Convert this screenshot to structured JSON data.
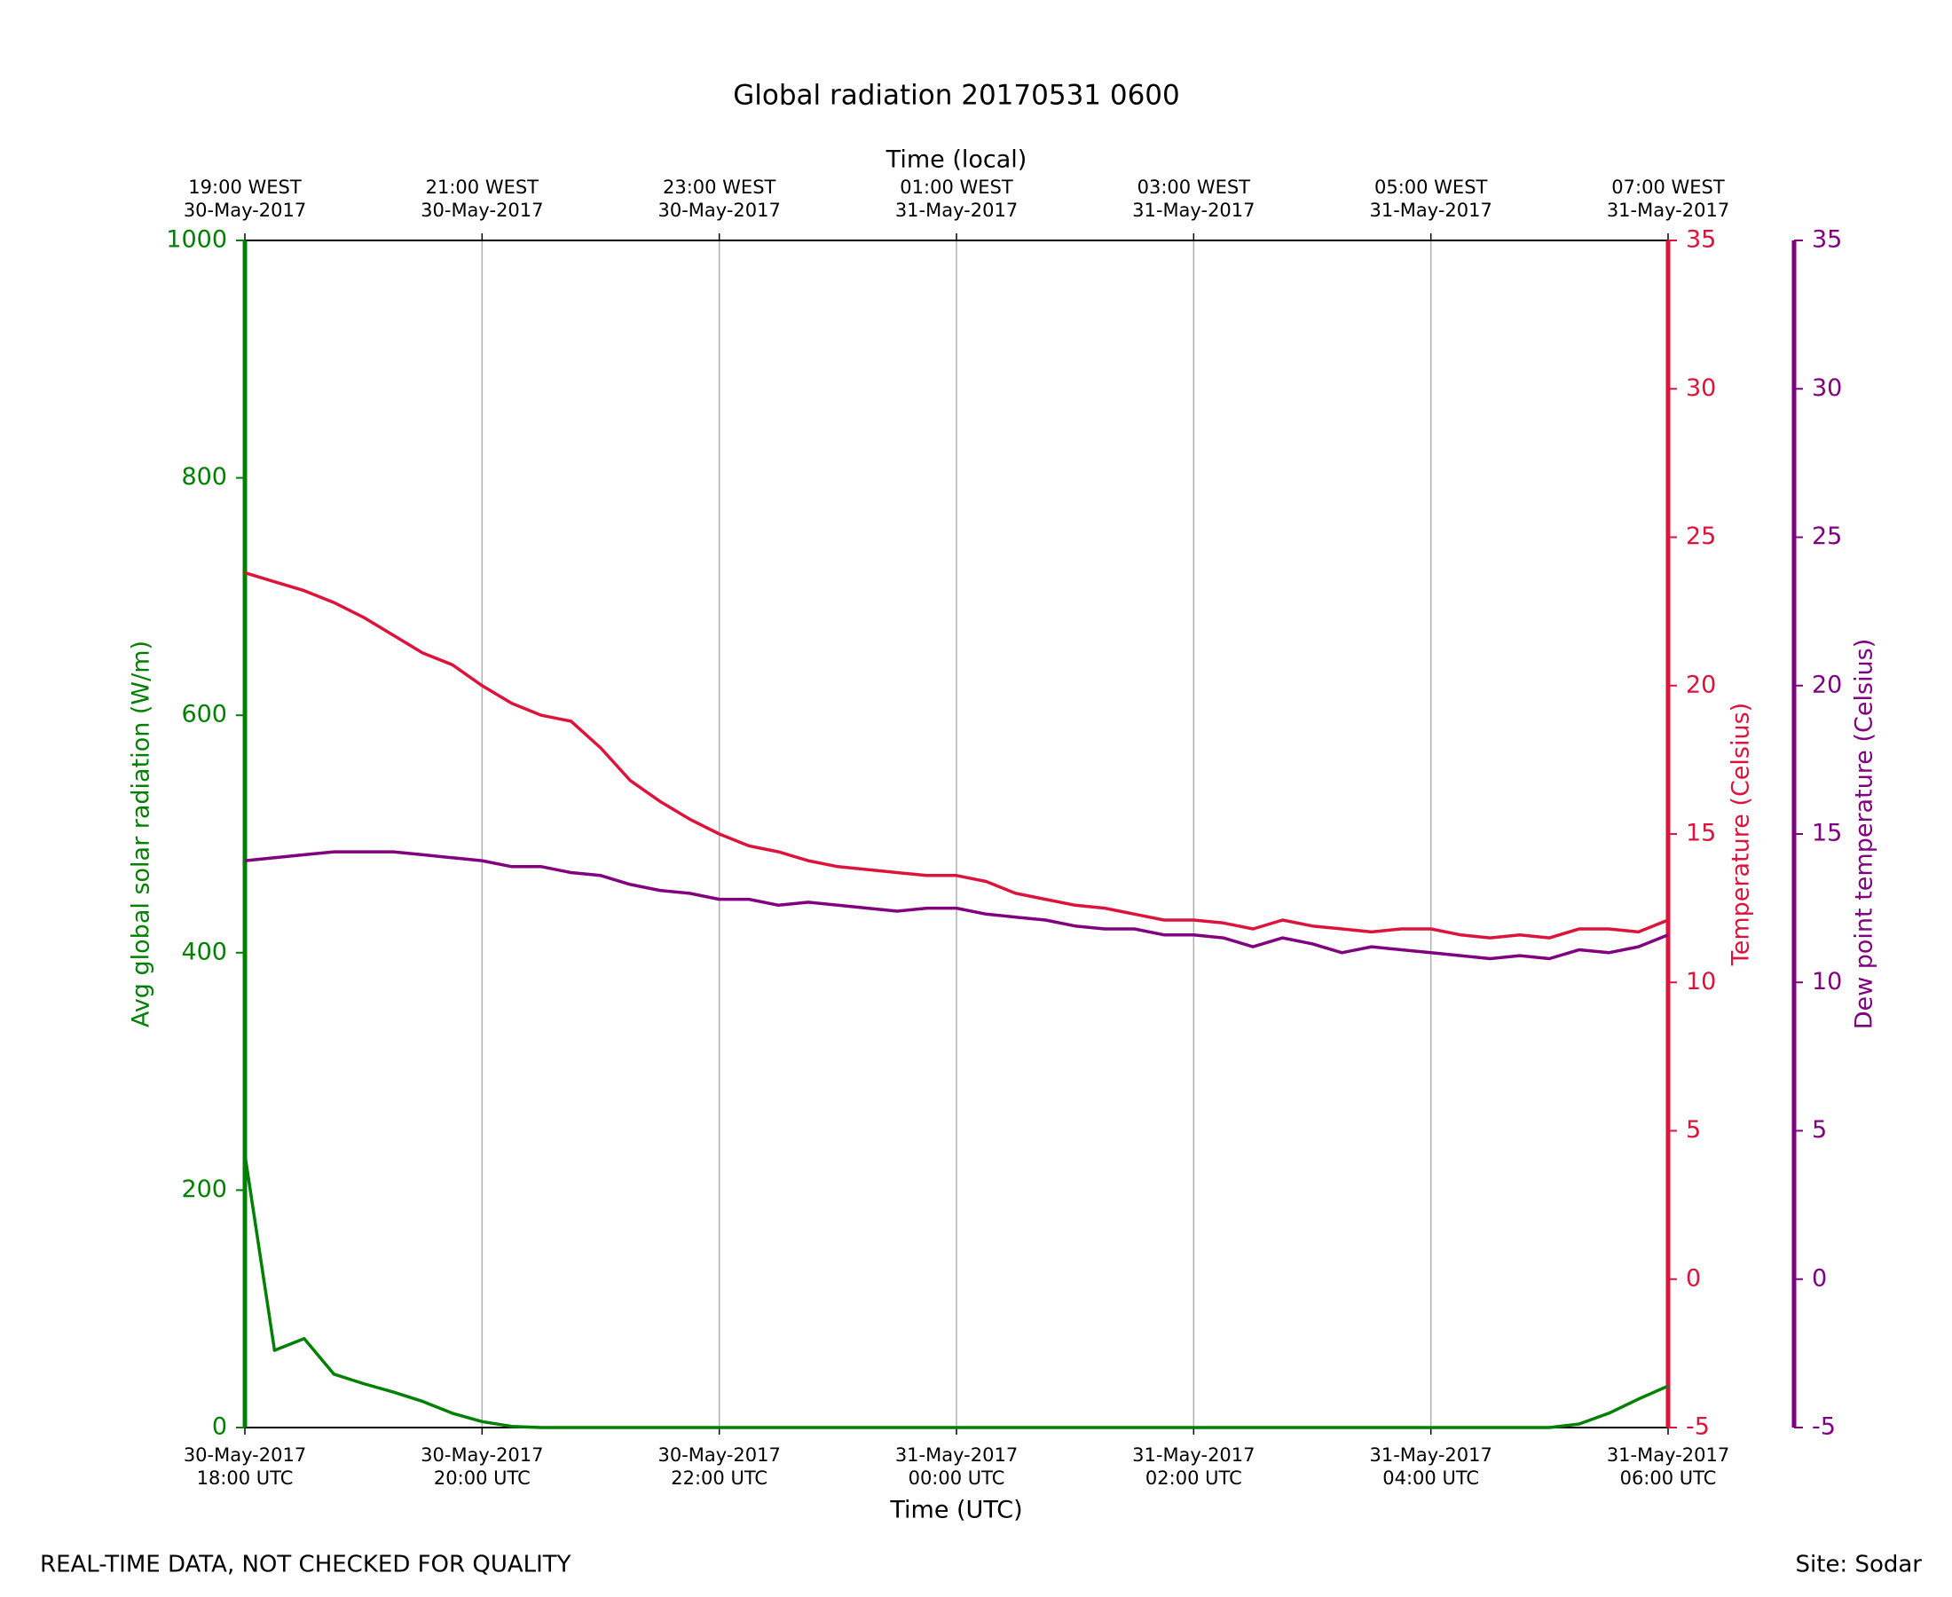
{
  "chart_data": {
    "type": "line",
    "title": "Global radiation 20170531 0600",
    "xlabel": "Time (UTC)",
    "x2label": "Time (local)",
    "ylabel": "Avg global solar radiation (W/m)",
    "y2label": "Temperature (Celsius)",
    "y3label": "Dew point temperature (Celsius)",
    "footer_left": "REAL-TIME DATA, NOT CHECKED FOR QUALITY",
    "footer_right": "Site: Sodar",
    "grid": true,
    "xlim": [
      "2017-05-30 18:00",
      "2017-05-31 06:00"
    ],
    "xticks": [
      {
        "value": "2017-05-30 18:00",
        "label": [
          "30-May-2017",
          "18:00 UTC"
        ]
      },
      {
        "value": "2017-05-30 20:00",
        "label": [
          "30-May-2017",
          "20:00 UTC"
        ]
      },
      {
        "value": "2017-05-30 22:00",
        "label": [
          "30-May-2017",
          "22:00 UTC"
        ]
      },
      {
        "value": "2017-05-31 00:00",
        "label": [
          "31-May-2017",
          "00:00 UTC"
        ]
      },
      {
        "value": "2017-05-31 02:00",
        "label": [
          "31-May-2017",
          "02:00 UTC"
        ]
      },
      {
        "value": "2017-05-31 04:00",
        "label": [
          "31-May-2017",
          "04:00 UTC"
        ]
      },
      {
        "value": "2017-05-31 06:00",
        "label": [
          "31-May-2017",
          "06:00 UTC"
        ]
      }
    ],
    "x2ticks": [
      {
        "value": "2017-05-30 18:00",
        "label": [
          "19:00 WEST",
          "30-May-2017"
        ]
      },
      {
        "value": "2017-05-30 20:00",
        "label": [
          "21:00 WEST",
          "30-May-2017"
        ]
      },
      {
        "value": "2017-05-30 22:00",
        "label": [
          "23:00 WEST",
          "30-May-2017"
        ]
      },
      {
        "value": "2017-05-31 00:00",
        "label": [
          "01:00 WEST",
          "31-May-2017"
        ]
      },
      {
        "value": "2017-05-31 02:00",
        "label": [
          "03:00 WEST",
          "31-May-2017"
        ]
      },
      {
        "value": "2017-05-31 04:00",
        "label": [
          "05:00 WEST",
          "31-May-2017"
        ]
      },
      {
        "value": "2017-05-31 06:00",
        "label": [
          "07:00 WEST",
          "31-May-2017"
        ]
      }
    ],
    "ylim": [
      0,
      1000
    ],
    "yticks": [
      0,
      200,
      400,
      600,
      800,
      1000
    ],
    "y2lim": [
      -5,
      35
    ],
    "y2ticks": [
      -5,
      0,
      5,
      10,
      15,
      20,
      25,
      30,
      35
    ],
    "y3lim": [
      -5,
      35
    ],
    "y3ticks": [
      -5,
      0,
      5,
      10,
      15,
      20,
      25,
      30,
      35
    ],
    "x": [
      "2017-05-30 18:00",
      "2017-05-30 18:15",
      "2017-05-30 18:30",
      "2017-05-30 18:45",
      "2017-05-30 19:00",
      "2017-05-30 19:15",
      "2017-05-30 19:30",
      "2017-05-30 19:45",
      "2017-05-30 20:00",
      "2017-05-30 20:15",
      "2017-05-30 20:30",
      "2017-05-30 20:45",
      "2017-05-30 21:00",
      "2017-05-30 21:15",
      "2017-05-30 21:30",
      "2017-05-30 21:45",
      "2017-05-30 22:00",
      "2017-05-30 22:15",
      "2017-05-30 22:30",
      "2017-05-30 22:45",
      "2017-05-30 23:00",
      "2017-05-30 23:15",
      "2017-05-30 23:30",
      "2017-05-30 23:45",
      "2017-05-31 00:00",
      "2017-05-31 00:15",
      "2017-05-31 00:30",
      "2017-05-31 00:45",
      "2017-05-31 01:00",
      "2017-05-31 01:15",
      "2017-05-31 01:30",
      "2017-05-31 01:45",
      "2017-05-31 02:00",
      "2017-05-31 02:15",
      "2017-05-31 02:30",
      "2017-05-31 02:45",
      "2017-05-31 03:00",
      "2017-05-31 03:15",
      "2017-05-31 03:30",
      "2017-05-31 03:45",
      "2017-05-31 04:00",
      "2017-05-31 04:15",
      "2017-05-31 04:30",
      "2017-05-31 04:45",
      "2017-05-31 05:00",
      "2017-05-31 05:15",
      "2017-05-31 05:30",
      "2017-05-31 05:45",
      "2017-05-31 06:00"
    ],
    "series": [
      {
        "name": "Avg global solar radiation",
        "color": "#008000",
        "axis": "y",
        "values": [
          230,
          65,
          75,
          45,
          37,
          30,
          22,
          12,
          5,
          1,
          0,
          0,
          0,
          0,
          0,
          0,
          0,
          0,
          0,
          0,
          0,
          0,
          0,
          0,
          0,
          0,
          0,
          0,
          0,
          0,
          0,
          0,
          0,
          0,
          0,
          0,
          0,
          0,
          0,
          0,
          0,
          0,
          0,
          0,
          0,
          3,
          12,
          24,
          35
        ]
      },
      {
        "name": "Temperature",
        "color": "#dc143c",
        "axis": "y2",
        "values": [
          23.8,
          23.5,
          23.2,
          22.8,
          22.3,
          21.7,
          21.1,
          20.7,
          20.0,
          19.4,
          19.0,
          18.8,
          17.9,
          16.8,
          16.1,
          15.5,
          15.0,
          14.6,
          14.4,
          14.1,
          13.9,
          13.8,
          13.7,
          13.6,
          13.6,
          13.4,
          13.0,
          12.8,
          12.6,
          12.5,
          12.3,
          12.1,
          12.1,
          12.0,
          11.8,
          12.1,
          11.9,
          11.8,
          11.7,
          11.8,
          11.8,
          11.6,
          11.5,
          11.6,
          11.5,
          11.8,
          11.8,
          11.7,
          12.1
        ]
      },
      {
        "name": "Dew point temperature",
        "color": "#800080",
        "axis": "y3",
        "values": [
          14.1,
          14.2,
          14.3,
          14.4,
          14.4,
          14.4,
          14.3,
          14.2,
          14.1,
          13.9,
          13.9,
          13.7,
          13.6,
          13.3,
          13.1,
          13.0,
          12.8,
          12.8,
          12.6,
          12.7,
          12.6,
          12.5,
          12.4,
          12.5,
          12.5,
          12.3,
          12.2,
          12.1,
          11.9,
          11.8,
          11.8,
          11.6,
          11.6,
          11.5,
          11.2,
          11.5,
          11.3,
          11.0,
          11.2,
          11.1,
          11.0,
          10.9,
          10.8,
          10.9,
          10.8,
          11.1,
          11.0,
          11.2,
          11.6
        ]
      }
    ]
  }
}
